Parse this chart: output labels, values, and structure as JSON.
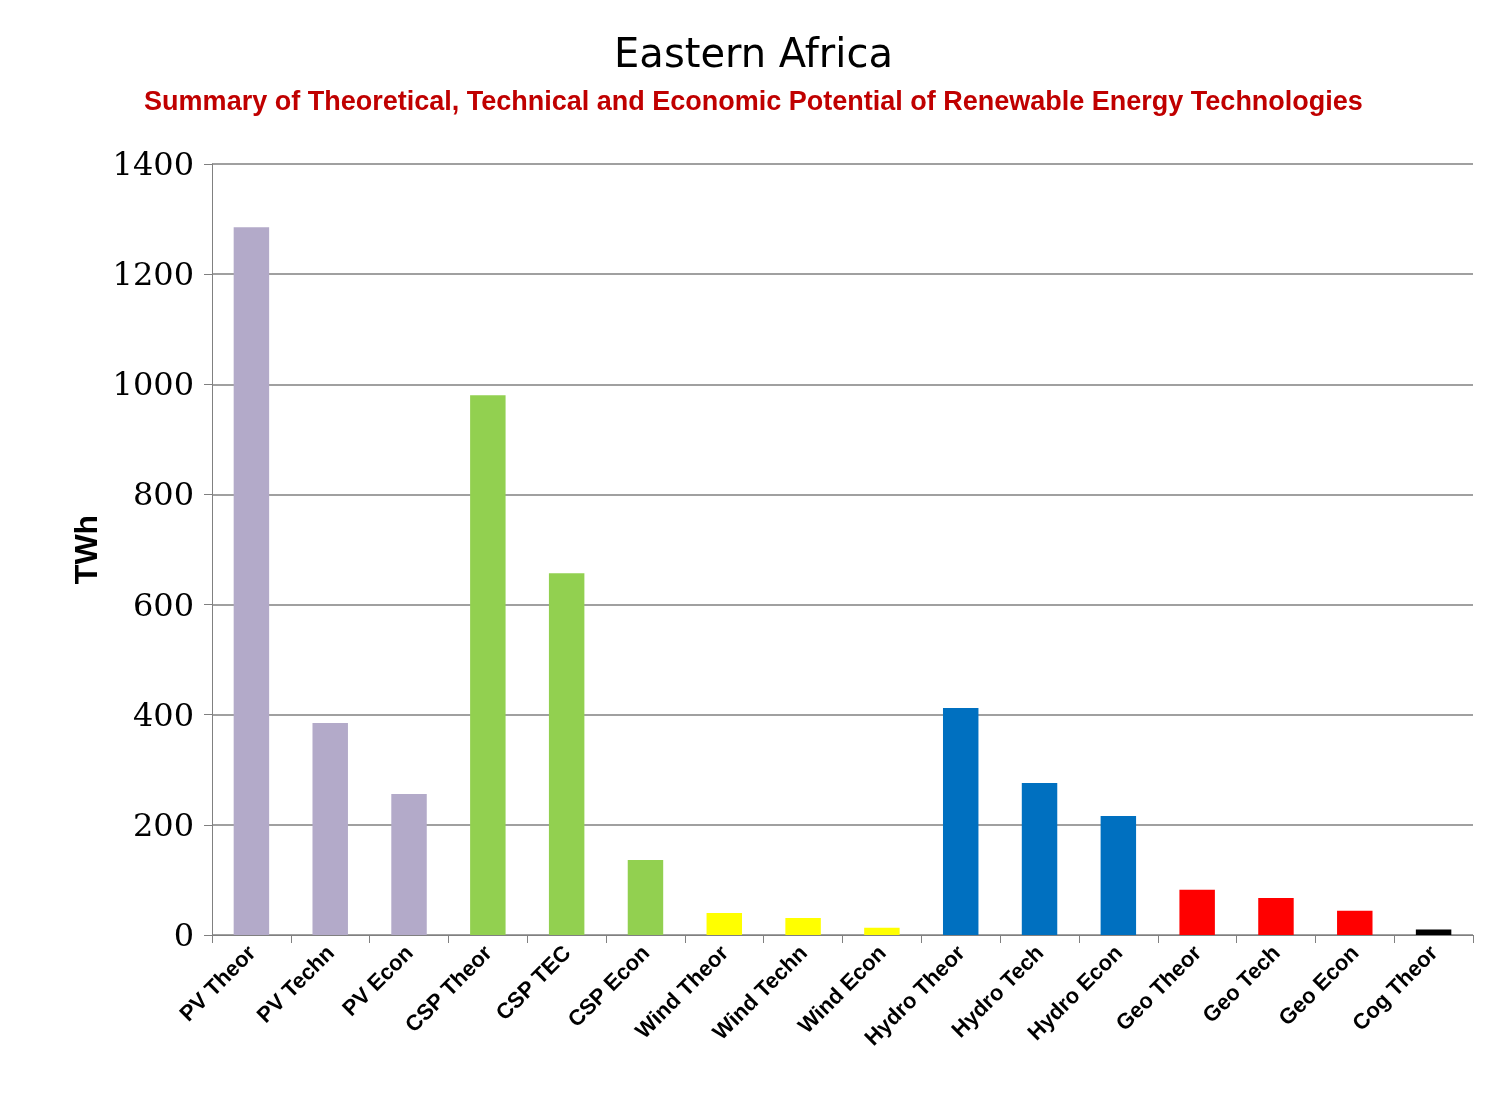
{
  "chart_data": {
    "type": "bar",
    "title": "Eastern Africa",
    "subtitle": "Summary of Theoretical, Technical and Economic Potential of Renewable Energy Technologies",
    "ylabel": "TWh",
    "categories": [
      "PV Theor",
      "PV Techn",
      "PV Econ",
      "CSP Theor",
      "CSP TEC",
      "CSP Econ",
      "Wind Theor",
      "Wind Techn",
      "Wind Econ",
      "Hydro Theor",
      "Hydro Tech",
      "Hydro Econ",
      "Geo Theor",
      "Geo Tech",
      "Geo Econ",
      "Cog Theor"
    ],
    "values": [
      1285,
      385,
      256,
      980,
      657,
      136,
      40,
      31,
      13,
      412,
      276,
      216,
      82,
      67,
      44,
      10
    ],
    "colors": [
      "#b3aac9",
      "#b3aac9",
      "#b3aac9",
      "#92d050",
      "#92d050",
      "#92d050",
      "#ffff00",
      "#ffff00",
      "#ffff00",
      "#0070c0",
      "#0070c0",
      "#0070c0",
      "#ff0000",
      "#ff0000",
      "#ff0000",
      "#000000"
    ],
    "ylim": [
      0,
      1400
    ],
    "yticks": [
      0,
      200,
      400,
      600,
      800,
      1000,
      1200,
      1400
    ],
    "grid": "y"
  }
}
